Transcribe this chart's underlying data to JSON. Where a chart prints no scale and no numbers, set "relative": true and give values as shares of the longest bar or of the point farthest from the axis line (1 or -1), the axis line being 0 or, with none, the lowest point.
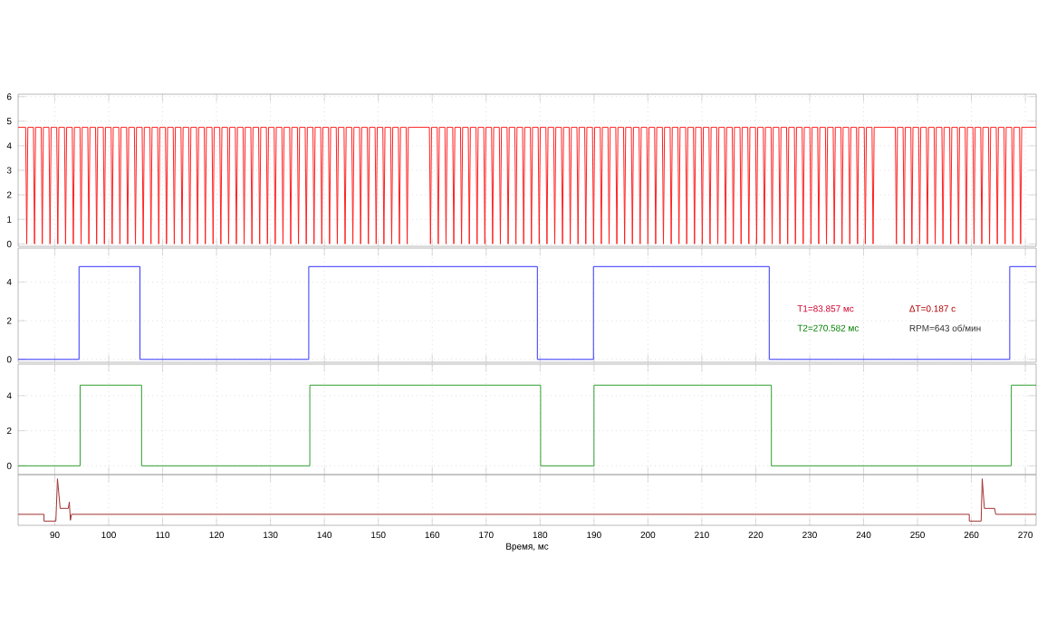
{
  "chart_data": [
    {
      "type": "line",
      "xlim": [
        83.2,
        272
      ],
      "xticks": [
        90,
        100,
        110,
        120,
        130,
        140,
        150,
        160,
        170,
        180,
        190,
        200,
        210,
        220,
        230,
        240,
        250,
        260,
        270
      ],
      "ylim": [
        -0.1,
        6.1
      ],
      "yticks": [
        0,
        1,
        2,
        3,
        4,
        5,
        6
      ],
      "grid": true,
      "tick_labels": "y",
      "series": [
        {
          "color": "#ff2020",
          "x": [
            83.2,
            84.6,
            84.8,
            85.0,
            86.04,
            86.24,
            86.44,
            87.48,
            87.68,
            87.88,
            88.92,
            89.12,
            89.32,
            90.36,
            90.56,
            90.76,
            91.8,
            92.0,
            92.2,
            93.24,
            93.44,
            93.64,
            94.68,
            94.88,
            95.08,
            96.12,
            96.32,
            96.52,
            97.56,
            97.76,
            97.96,
            99.0,
            99.2,
            99.4,
            100.44,
            100.64,
            100.84,
            101.88,
            102.08,
            102.28,
            103.32,
            103.52,
            103.72,
            104.76,
            104.96,
            105.16,
            106.2,
            106.4,
            106.6,
            107.64,
            107.84,
            108.04,
            109.08,
            109.28,
            109.48,
            110.52,
            110.72,
            110.92,
            111.96,
            112.16,
            112.36,
            113.4,
            113.6,
            113.8,
            114.84,
            115.04,
            115.24,
            116.28,
            116.48,
            116.68,
            117.72,
            117.92,
            118.12,
            119.16,
            119.36,
            119.56,
            120.6,
            120.8,
            121.0,
            122.04,
            122.24,
            122.44,
            123.48,
            123.68,
            123.88,
            124.92,
            125.12,
            125.32,
            126.36,
            126.56,
            126.76,
            127.8,
            128.0,
            128.2,
            129.24,
            129.44,
            129.64,
            130.68,
            130.88,
            131.08,
            132.12,
            132.32,
            132.52,
            133.56,
            133.76,
            133.96,
            135.0,
            135.2,
            135.4,
            136.44,
            136.64,
            136.84,
            137.88,
            138.08,
            138.28,
            139.32,
            139.52,
            139.72,
            140.76,
            140.96,
            141.16,
            142.2,
            142.4,
            142.6,
            143.64,
            143.84,
            144.04,
            145.08,
            145.28,
            145.48,
            146.52,
            146.72,
            146.92,
            147.96,
            148.16,
            148.36,
            149.4,
            149.6,
            149.8,
            150.84,
            151.04,
            151.24,
            152.28,
            152.48,
            152.68,
            153.72,
            153.92,
            154.12,
            155.16,
            155.36,
            155.56,
            159.48,
            159.68,
            159.88,
            160.92,
            161.12,
            161.32,
            162.36,
            162.56,
            162.76,
            163.8,
            164.0,
            164.2,
            165.24,
            165.44,
            165.64,
            166.68,
            166.88,
            167.08,
            168.12,
            168.32,
            168.52,
            169.56,
            169.76,
            169.96,
            171.0,
            171.2,
            171.4,
            172.44,
            172.64,
            172.84,
            173.88,
            174.08,
            174.28,
            175.32,
            175.52,
            175.72,
            176.76,
            176.96,
            177.16,
            178.2,
            178.4,
            178.6,
            179.64,
            179.84,
            180.04,
            181.08,
            181.28,
            181.48,
            182.52,
            182.72,
            182.92,
            183.96,
            184.16,
            184.36,
            185.4,
            185.6,
            185.8,
            186.84,
            187.04,
            187.24,
            188.28,
            188.48,
            188.68,
            189.72,
            189.92,
            190.12,
            191.16,
            191.36,
            191.56,
            192.6,
            192.8,
            193.0,
            194.04,
            194.24,
            194.44,
            195.48,
            195.68,
            195.88,
            196.92,
            197.12,
            197.32,
            198.36,
            198.56,
            198.76,
            199.8,
            200.0,
            200.2,
            201.24,
            201.44,
            201.64,
            202.68,
            202.88,
            203.08,
            204.12,
            204.32,
            204.52,
            205.56,
            205.76,
            205.96,
            207.0,
            207.2,
            207.4,
            208.44,
            208.64,
            208.84,
            209.88,
            210.08,
            210.28,
            211.32,
            211.52,
            211.72,
            212.76,
            212.96,
            213.16,
            214.2,
            214.4,
            214.6,
            215.64,
            215.84,
            216.04,
            217.08,
            217.28,
            217.48,
            218.52,
            218.72,
            218.92,
            219.96,
            220.16,
            220.36,
            221.4,
            221.6,
            221.8,
            222.84,
            223.04,
            223.24,
            224.28,
            224.48,
            224.68,
            225.72,
            225.92,
            226.12,
            227.16,
            227.36,
            227.56,
            228.6,
            228.8,
            229.0,
            230.04,
            230.24,
            230.44,
            231.48,
            231.68,
            231.88,
            232.92,
            233.12,
            233.32,
            234.36,
            234.56,
            234.76,
            235.8,
            236.0,
            236.2,
            237.24,
            237.44,
            237.64,
            238.68,
            238.88,
            239.08,
            240.12,
            240.32,
            240.52,
            241.56,
            241.76,
            241.96,
            245.88,
            246.08,
            246.28,
            247.32,
            247.52,
            247.72,
            248.76,
            248.96,
            249.16,
            250.2,
            250.4,
            250.6,
            251.64,
            251.84,
            252.04,
            253.08,
            253.28,
            253.48,
            254.52,
            254.72,
            254.92,
            255.96,
            256.16,
            256.36,
            257.4,
            257.6,
            257.8,
            258.84,
            259.04,
            259.24,
            260.28,
            260.48,
            260.68,
            261.72,
            261.92,
            262.12,
            263.16,
            263.36,
            263.56,
            264.6,
            264.8,
            265.0,
            266.04,
            266.24,
            266.44,
            267.48,
            267.68,
            267.88,
            268.92,
            269.12,
            269.32,
            272.0
          ],
          "values": [
            4.75,
            4.75,
            0,
            4.75,
            4.75,
            0,
            4.75,
            4.75,
            0,
            4.75,
            4.75,
            0,
            4.75,
            4.75,
            0,
            4.75,
            4.75,
            0,
            4.75,
            4.75,
            0,
            4.75,
            4.75,
            0,
            4.75,
            4.75,
            0,
            4.75,
            4.75,
            0,
            4.75,
            4.75,
            0,
            4.75,
            4.75,
            0,
            4.75,
            4.75,
            0,
            4.75,
            4.75,
            0,
            4.75,
            4.75,
            0,
            4.75,
            4.75,
            0,
            4.75,
            4.75,
            0,
            4.75,
            4.75,
            0,
            4.75,
            4.75,
            0,
            4.75,
            4.75,
            0,
            4.75,
            4.75,
            0,
            4.75,
            4.75,
            0,
            4.75,
            4.75,
            0,
            4.75,
            4.75,
            0,
            4.75,
            4.75,
            0,
            4.75,
            4.75,
            0,
            4.75,
            4.75,
            0,
            4.75,
            4.75,
            0,
            4.75,
            4.75,
            0,
            4.75,
            4.75,
            0,
            4.75,
            4.75,
            0,
            4.75,
            4.75,
            0,
            4.75,
            4.75,
            0,
            4.75,
            4.75,
            0,
            4.75,
            4.75,
            0,
            4.75,
            4.75,
            0,
            4.75,
            4.75,
            0,
            4.75,
            4.75,
            0,
            4.75,
            4.75,
            0,
            4.75,
            4.75,
            0,
            4.75,
            4.75,
            0,
            4.75,
            4.75,
            0,
            4.75,
            4.75,
            0,
            4.75,
            4.75,
            0,
            4.75,
            4.75,
            0,
            4.75,
            4.75,
            0,
            4.75,
            4.75,
            0,
            4.75,
            4.75,
            0,
            4.75,
            4.75,
            0,
            4.75,
            4.75,
            0,
            4.75,
            4.75,
            0,
            4.75,
            4.75,
            0,
            4.75,
            4.75,
            0,
            4.75,
            4.75,
            0,
            4.75,
            4.75,
            0,
            4.75,
            4.75,
            0,
            4.75,
            4.75,
            0,
            4.75,
            4.75,
            0,
            4.75,
            4.75,
            0,
            4.75,
            4.75,
            0,
            4.75,
            4.75,
            0,
            4.75,
            4.75,
            0,
            4.75,
            4.75,
            0,
            4.75,
            4.75,
            0,
            4.75,
            4.75,
            0,
            4.75,
            4.75,
            0,
            4.75,
            4.75,
            0,
            4.75,
            4.75,
            0,
            4.75,
            4.75,
            0,
            4.75,
            4.75,
            0,
            4.75,
            4.75,
            0,
            4.75,
            4.75,
            0,
            4.75,
            4.75,
            0,
            4.75,
            4.75,
            0,
            4.75,
            4.75,
            0,
            4.75,
            4.75,
            0,
            4.75,
            4.75,
            0,
            4.75,
            4.75,
            0,
            4.75,
            4.75,
            0,
            4.75,
            4.75,
            0,
            4.75,
            4.75,
            0,
            4.75,
            4.75,
            0,
            4.75,
            4.75,
            0,
            4.75,
            4.75,
            0,
            4.75,
            4.75,
            0,
            4.75,
            4.75,
            0,
            4.75,
            4.75,
            0,
            4.75,
            4.75,
            0,
            4.75,
            4.75,
            0,
            4.75,
            4.75,
            0,
            4.75,
            4.75,
            0,
            4.75,
            4.75,
            0,
            4.75,
            4.75,
            0,
            4.75,
            4.75,
            0,
            4.75,
            4.75,
            0,
            4.75,
            4.75,
            0,
            4.75,
            4.75,
            0,
            4.75,
            4.75,
            0,
            4.75,
            4.75,
            0,
            4.75,
            4.75,
            0,
            4.75,
            4.75,
            0,
            4.75,
            4.75,
            0,
            4.75,
            4.75,
            0,
            4.75,
            4.75,
            0,
            4.75,
            4.75,
            0,
            4.75,
            4.75,
            0,
            4.75,
            4.75,
            0,
            4.75,
            4.75,
            0,
            4.75,
            4.75,
            0,
            4.75,
            4.75,
            0,
            4.75,
            4.75,
            0,
            4.75,
            4.75,
            0,
            4.75,
            4.75,
            0,
            4.75,
            4.75,
            0,
            4.75,
            4.75,
            0,
            4.75,
            4.75,
            0,
            4.75,
            4.75,
            0,
            4.75,
            4.75,
            0,
            4.75,
            4.75,
            0,
            4.75,
            4.75,
            0,
            4.75,
            4.75,
            0,
            4.75,
            4.75,
            0,
            4.75,
            4.75,
            0,
            4.75,
            4.75,
            0,
            4.75,
            4.75,
            0,
            4.75,
            4.75
          ]
        }
      ]
    },
    {
      "type": "step",
      "xlim": [
        83.2,
        272
      ],
      "xticks": [
        90,
        100,
        110,
        120,
        130,
        140,
        150,
        160,
        170,
        180,
        190,
        200,
        210,
        220,
        230,
        240,
        250,
        260,
        270
      ],
      "ylim": [
        -0.15,
        5.75
      ],
      "yticks": [
        0,
        2,
        4
      ],
      "grid": true,
      "tick_labels": "y",
      "annotations": [
        "T1=83.857 мс",
        "ΔT=0.187 с",
        "T2=270.582 мс",
        "RPM=643 об/мин"
      ],
      "series": [
        {
          "color": "#3333ff",
          "x": [
            83.2,
            94.5,
            105.8,
            137.1,
            179.5,
            189.9,
            222.5,
            267.1,
            272.0
          ],
          "values": [
            0,
            4.8,
            0,
            4.8,
            0,
            4.8,
            0,
            4.8,
            4.8
          ]
        }
      ]
    },
    {
      "type": "step",
      "xlim": [
        83.2,
        272
      ],
      "xticks": [
        90,
        100,
        110,
        120,
        130,
        140,
        150,
        160,
        170,
        180,
        190,
        200,
        210,
        220,
        230,
        240,
        250,
        260,
        270
      ],
      "ylim": [
        -0.5,
        5.8
      ],
      "yticks": [
        0,
        2,
        4
      ],
      "grid": true,
      "tick_labels": "y",
      "series": [
        {
          "color": "#2e9e2e",
          "x": [
            83.2,
            94.7,
            106.1,
            137.3,
            180.1,
            190.0,
            222.9,
            267.4,
            272.0
          ],
          "values": [
            0,
            4.6,
            0,
            4.6,
            0,
            4.6,
            0,
            4.6,
            4.6
          ]
        }
      ]
    },
    {
      "type": "line",
      "relative": true,
      "xlim": [
        83.2,
        272
      ],
      "xticks": [
        90,
        100,
        110,
        120,
        130,
        140,
        150,
        160,
        170,
        180,
        190,
        200,
        210,
        220,
        230,
        240,
        250,
        260,
        270
      ],
      "grid": "x",
      "tick_labels": "x",
      "xlabel": "Время, мс",
      "series": [
        {
          "color": "#a03030",
          "x": [
            83.2,
            88.0,
            88.0,
            90.2,
            90.5,
            91.0,
            92.5,
            92.7,
            92.9,
            93.1,
            259.6,
            259.6,
            261.8,
            262.0,
            262.4,
            264.3,
            264.5,
            272.0
          ],
          "values": [
            0.16,
            0.16,
            0,
            0,
            1,
            0.3,
            0.3,
            0.45,
            0.02,
            0.16,
            0.16,
            0,
            0,
            1,
            0.3,
            0.3,
            0.16,
            0.16
          ]
        }
      ]
    }
  ]
}
